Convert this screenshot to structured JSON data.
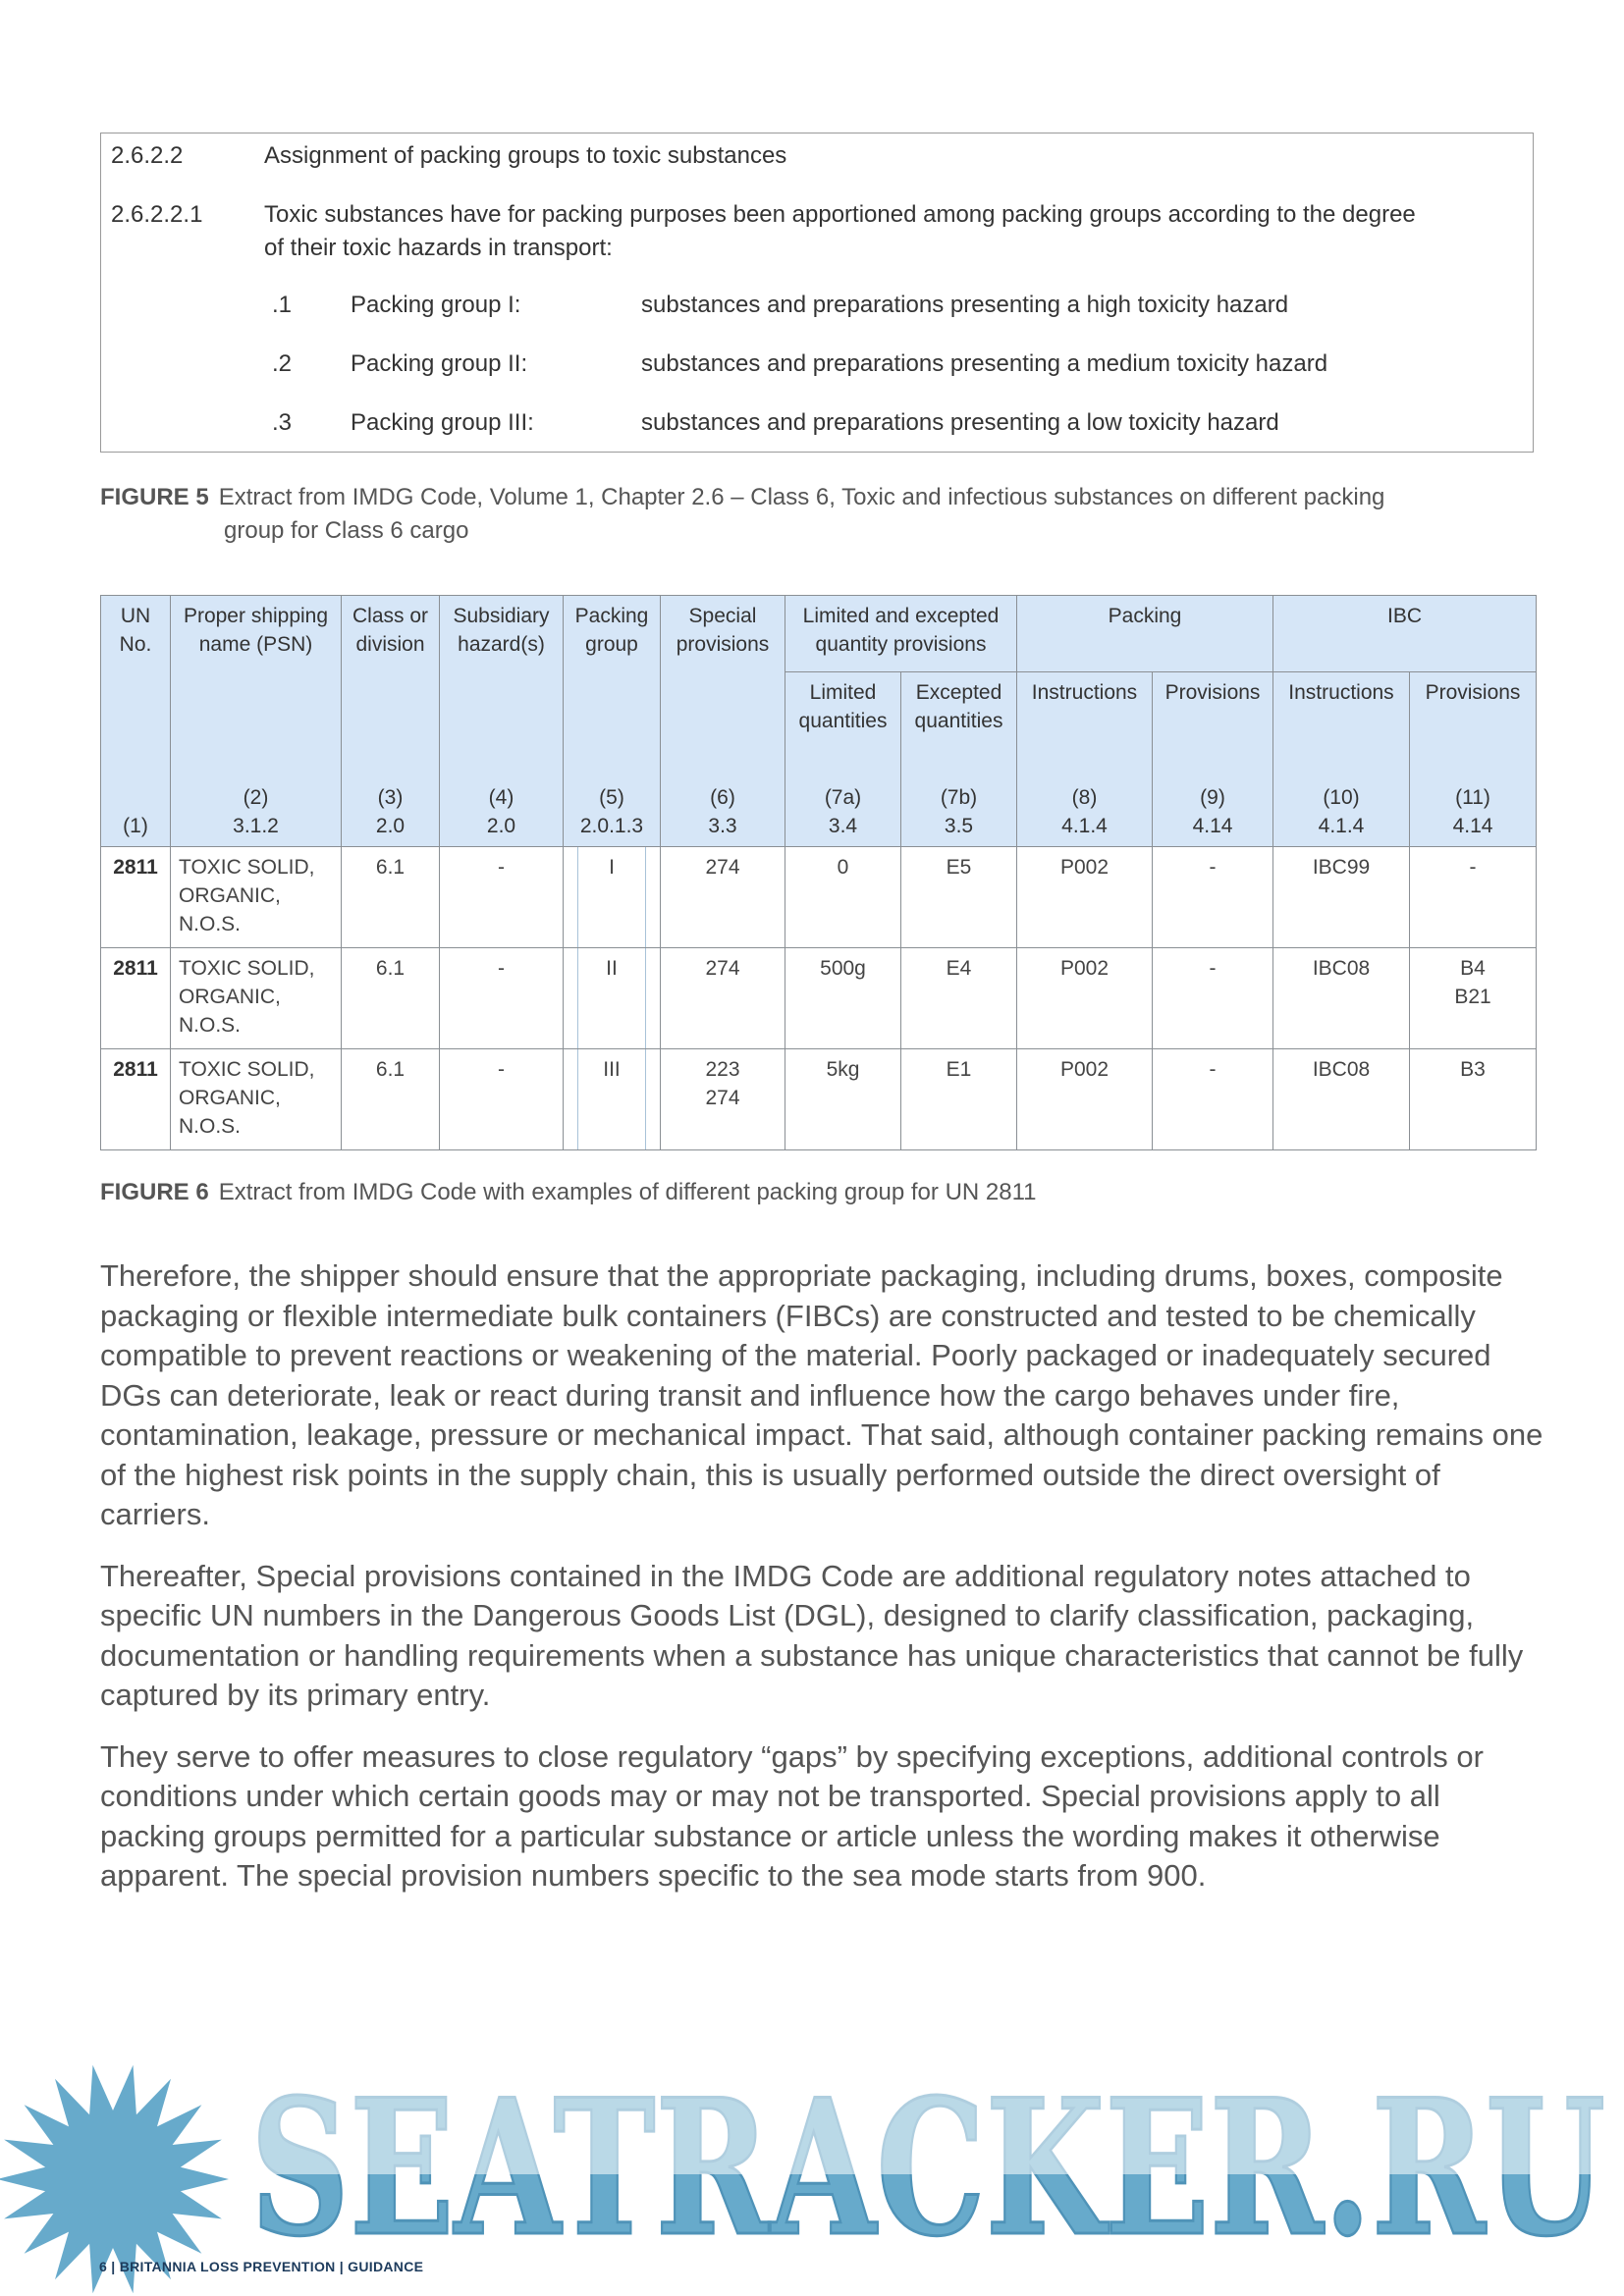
{
  "box": {
    "heading_num": "2.6.2.2",
    "heading": "Assignment of packing groups to toxic substances",
    "para_num": "2.6.2.2.1",
    "para_line1": "Toxic substances have for packing purposes been apportioned among packing groups according to the degree",
    "para_line2": "of their toxic hazards in transport:",
    "items": [
      {
        "num": ".1",
        "group": "Packing group I:",
        "desc": "substances and preparations presenting a high toxicity hazard"
      },
      {
        "num": ".2",
        "group": "Packing group II:",
        "desc": "substances and preparations presenting a medium toxicity hazard"
      },
      {
        "num": ".3",
        "group": "Packing group III:",
        "desc": "substances and preparations presenting a low toxicity hazard"
      }
    ]
  },
  "figure5": {
    "label": "FIGURE 5",
    "line1": "Extract from IMDG Code, Volume 1, Chapter 2.6 – Class 6, Toxic and infectious substances on different packing",
    "line2": "group for Class 6 cargo"
  },
  "table": {
    "header_top": [
      {
        "title": "UN No.",
        "ref": "(1)",
        "sec": ""
      },
      {
        "title": "Proper shipping name (PSN)",
        "ref": "(2)",
        "sec": "3.1.2"
      },
      {
        "title": "Class or division",
        "ref": "(3)",
        "sec": "2.0"
      },
      {
        "title": "Subsidiary hazard(s)",
        "ref": "(4)",
        "sec": "2.0"
      },
      {
        "title": "Packing group",
        "ref": "(5)",
        "sec": "2.0.1.3"
      },
      {
        "title": "Special provisions",
        "ref": "(6)",
        "sec": "3.3"
      }
    ],
    "group_headers": [
      "Limited and excepted quantity provisions",
      "Packing",
      "IBC"
    ],
    "sub_headers": [
      {
        "title": "Limited quantities",
        "ref": "(7a)",
        "sec": "3.4"
      },
      {
        "title": "Excepted quantities",
        "ref": "(7b)",
        "sec": "3.5"
      },
      {
        "title": "Instructions",
        "ref": "(8)",
        "sec": "4.1.4"
      },
      {
        "title": "Provisions",
        "ref": "(9)",
        "sec": "4.14"
      },
      {
        "title": "Instructions",
        "ref": "(10)",
        "sec": "4.1.4"
      },
      {
        "title": "Provisions",
        "ref": "(11)",
        "sec": "4.14"
      }
    ],
    "rows": [
      [
        "2811",
        "TOXIC SOLID, ORGANIC, N.O.S.",
        "6.1",
        "-",
        "I",
        "274",
        "0",
        "E5",
        "P002",
        "-",
        "IBC99",
        "-"
      ],
      [
        "2811",
        "TOXIC SOLID, ORGANIC, N.O.S.",
        "6.1",
        "-",
        "II",
        "274",
        "500g",
        "E4",
        "P002",
        "-",
        "IBC08",
        "B4\nB21"
      ],
      [
        "2811",
        "TOXIC SOLID, ORGANIC, N.O.S.",
        "6.1",
        "-",
        "III",
        "223\n274",
        "5kg",
        "E1",
        "P002",
        "-",
        "IBC08",
        "B3"
      ]
    ]
  },
  "figure6": {
    "label": "FIGURE 6",
    "text": "Extract from IMDG Code with examples of different packing group for UN 2811"
  },
  "body": [
    "Therefore, the shipper should ensure that the appropriate packaging, including drums, boxes, composite packaging or flexible intermediate bulk containers (FIBCs) are constructed and tested to be chemically compatible to prevent reactions or weakening of the material. Poorly packaged or inadequately secured DGs can deteriorate, leak or react during transit and influence how the cargo behaves under fire, contamination, leakage, pressure or mechanical impact. That said, although container packing remains one of the highest risk points in the supply chain, this is usually performed outside the direct oversight of carriers.",
    "Thereafter, Special provisions contained in the IMDG Code are additional regulatory notes attached to specific UN numbers in the Dangerous Goods List (DGL), designed to clarify classification, packaging, documentation or handling requirements when a substance has unique characteristics that cannot be fully captured by its primary entry.",
    "They serve to offer measures to close regulatory “gaps” by specifying exceptions, additional controls or conditions under which certain goods may or may not be transported. Special provisions apply to all packing groups permitted for a particular substance or article unless the wording makes it otherwise apparent. The special provision numbers specific to the sea mode starts from 900."
  ],
  "footer": {
    "page": "6",
    "publication": "BRITANNIA LOSS PREVENTION",
    "section": "GUIDANCE"
  },
  "watermark": {
    "text": "SEATRACKER.RU",
    "color": "#67aacb"
  }
}
